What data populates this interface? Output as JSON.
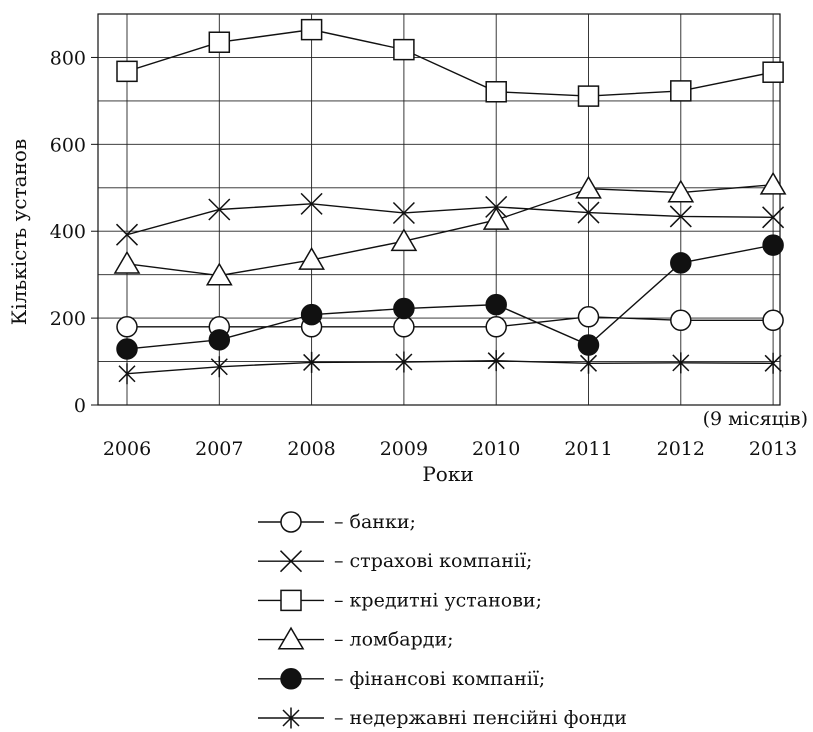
{
  "chart_data": {
    "type": "line",
    "xlabel": "Роки",
    "ylabel": "Кількість установ",
    "categories": [
      "2006",
      "2007",
      "2008",
      "2009",
      "2010",
      "2011",
      "2012",
      "2013"
    ],
    "x_note": "(9 місяців)",
    "ylim": [
      0,
      900
    ],
    "yticks": [
      0,
      200,
      400,
      600,
      800
    ],
    "grid": true,
    "legend_position": "bottom",
    "series": [
      {
        "name": "– банки;",
        "marker": "circle-open",
        "values": [
          180,
          180,
          180,
          180,
          180,
          203,
          195,
          195
        ]
      },
      {
        "name": "– страхові компанії;",
        "marker": "x",
        "values": [
          392,
          450,
          463,
          442,
          456,
          443,
          434,
          432
        ]
      },
      {
        "name": "– кредитні установи;",
        "marker": "square-open",
        "values": [
          768,
          835,
          864,
          818,
          721,
          711,
          723,
          766
        ]
      },
      {
        "name": "– ломбарди;",
        "marker": "triangle-open",
        "values": [
          325,
          298,
          334,
          377,
          426,
          498,
          489,
          507
        ]
      },
      {
        "name": "– фінансові компанії;",
        "marker": "circle-filled",
        "values": [
          129,
          150,
          208,
          222,
          231,
          138,
          327,
          368
        ]
      },
      {
        "name": "– недержавні пенсійні фонди",
        "marker": "asterisk",
        "values": [
          72,
          88,
          98,
          99,
          102,
          96,
          97,
          96
        ]
      }
    ]
  }
}
